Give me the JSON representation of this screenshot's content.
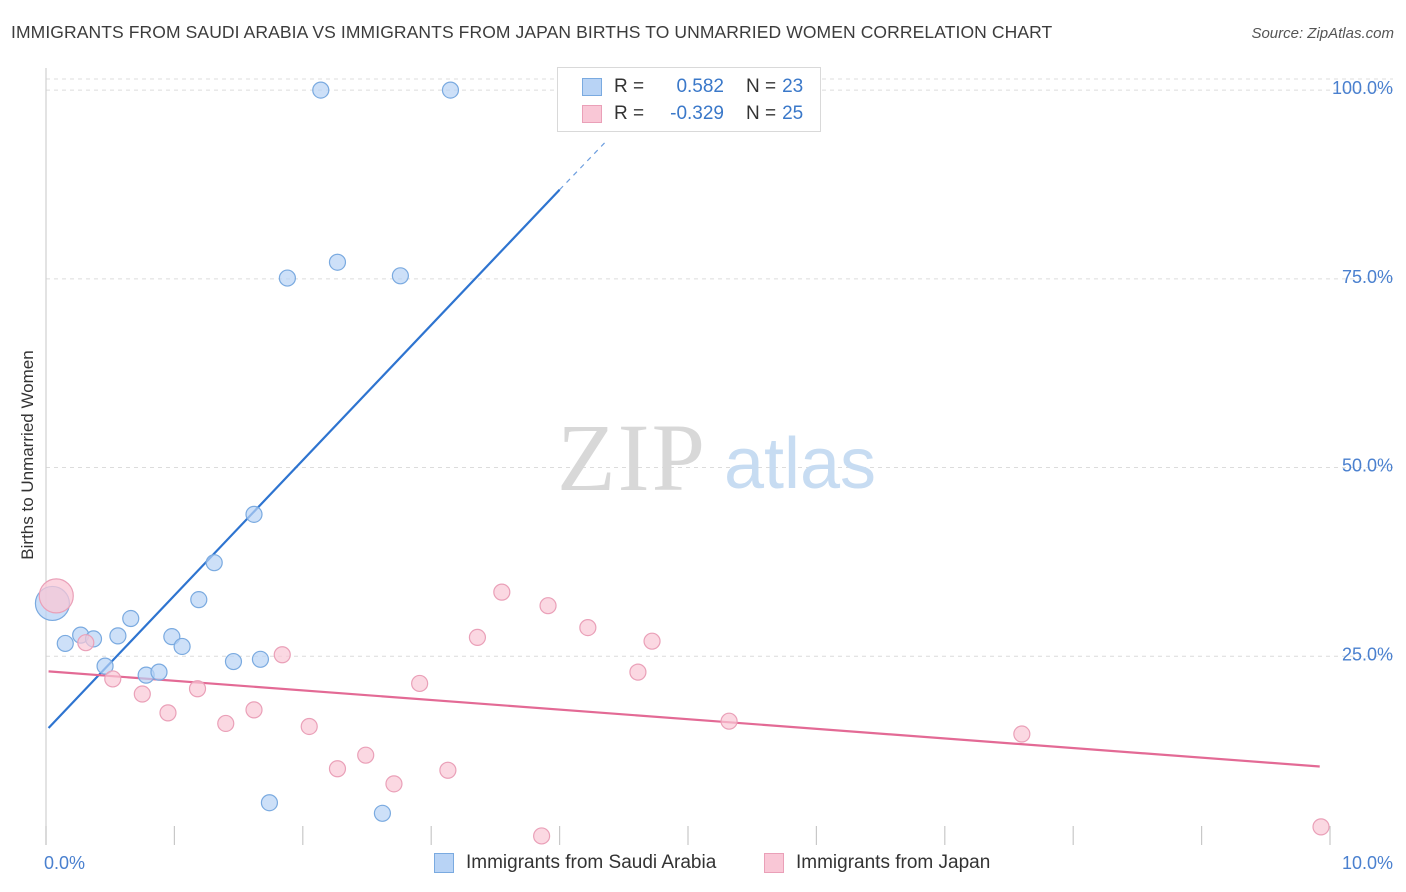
{
  "title": "IMMIGRANTS FROM SAUDI ARABIA VS IMMIGRANTS FROM JAPAN BIRTHS TO UNMARRIED WOMEN CORRELATION CHART",
  "source": "Source: ZipAtlas.com",
  "watermark": {
    "zip": "ZIP",
    "atlas": "atlas"
  },
  "colors": {
    "blue_fill": "#b8d3f5",
    "blue_stroke": "#7aaae0",
    "blue_line": "#2e74d0",
    "pink_fill": "#f9c7d6",
    "pink_stroke": "#eaa0b8",
    "pink_line": "#e36a95",
    "tick_label": "#4a80cf",
    "grid": "#dcdcdc"
  },
  "legend": {
    "rows": [
      {
        "r_label": "R =",
        "r_value": "0.582",
        "n_label": "N =",
        "n_value": "23"
      },
      {
        "r_label": "R =",
        "r_value": "-0.329",
        "n_label": "N =",
        "n_value": "25"
      }
    ]
  },
  "bottom_legend": {
    "items": [
      {
        "label": "Immigrants from Saudi Arabia"
      },
      {
        "label": "Immigrants from Japan"
      }
    ]
  },
  "chart_data": {
    "type": "scatter",
    "title": "IMMIGRANTS FROM SAUDI ARABIA VS IMMIGRANTS FROM JAPAN BIRTHS TO UNMARRIED WOMEN CORRELATION CHART",
    "xlabel": "",
    "ylabel": "Births to Unmarried Women",
    "xlim": [
      0,
      10
    ],
    "ylim": [
      0,
      102
    ],
    "x_tick_labels": [
      "0.0%",
      "10.0%"
    ],
    "y_ticks": [
      25,
      50,
      75,
      100
    ],
    "y_tick_labels": [
      "25.0%",
      "50.0%",
      "75.0%",
      "100.0%"
    ],
    "grid": true,
    "legend_position": "top-center",
    "series": [
      {
        "name": "Immigrants from Saudi Arabia",
        "color": "#b8d3f5",
        "r": 0.582,
        "n": 23,
        "trend": {
          "x": [
            0.02,
            4.0
          ],
          "y": [
            15.5,
            86.8
          ],
          "dashed_to": [
            4.35,
            93.0
          ]
        },
        "points": [
          {
            "x": 0.05,
            "y": 32.0,
            "big": true
          },
          {
            "x": 0.15,
            "y": 26.7
          },
          {
            "x": 0.27,
            "y": 27.8
          },
          {
            "x": 0.37,
            "y": 27.3
          },
          {
            "x": 0.46,
            "y": 23.7
          },
          {
            "x": 0.56,
            "y": 27.7
          },
          {
            "x": 0.66,
            "y": 30.0
          },
          {
            "x": 0.78,
            "y": 22.5
          },
          {
            "x": 0.88,
            "y": 22.9
          },
          {
            "x": 0.98,
            "y": 27.6
          },
          {
            "x": 1.06,
            "y": 26.3
          },
          {
            "x": 1.19,
            "y": 32.5
          },
          {
            "x": 1.31,
            "y": 37.4
          },
          {
            "x": 1.46,
            "y": 24.3
          },
          {
            "x": 1.62,
            "y": 43.8
          },
          {
            "x": 1.67,
            "y": 24.6
          },
          {
            "x": 1.74,
            "y": 5.6
          },
          {
            "x": 1.88,
            "y": 75.1
          },
          {
            "x": 2.14,
            "y": 100.0
          },
          {
            "x": 2.27,
            "y": 77.2
          },
          {
            "x": 2.62,
            "y": 4.2
          },
          {
            "x": 2.76,
            "y": 75.4
          },
          {
            "x": 3.15,
            "y": 100.0
          }
        ]
      },
      {
        "name": "Immigrants from Japan",
        "color": "#f9c7d6",
        "r": -0.329,
        "n": 25,
        "trend": {
          "x": [
            0.02,
            9.92
          ],
          "y": [
            23.0,
            10.4
          ]
        },
        "points": [
          {
            "x": 0.08,
            "y": 33.0,
            "big": true
          },
          {
            "x": 0.31,
            "y": 26.8
          },
          {
            "x": 0.52,
            "y": 22.0
          },
          {
            "x": 0.75,
            "y": 20.0
          },
          {
            "x": 0.95,
            "y": 17.5
          },
          {
            "x": 1.18,
            "y": 20.7
          },
          {
            "x": 1.4,
            "y": 16.1
          },
          {
            "x": 1.62,
            "y": 17.9
          },
          {
            "x": 1.84,
            "y": 25.2
          },
          {
            "x": 2.05,
            "y": 15.7
          },
          {
            "x": 2.27,
            "y": 10.1
          },
          {
            "x": 2.49,
            "y": 11.9
          },
          {
            "x": 2.71,
            "y": 8.1
          },
          {
            "x": 2.91,
            "y": 21.4
          },
          {
            "x": 3.13,
            "y": 9.9
          },
          {
            "x": 3.36,
            "y": 27.5
          },
          {
            "x": 3.55,
            "y": 33.5
          },
          {
            "x": 3.86,
            "y": 1.2
          },
          {
            "x": 3.91,
            "y": 31.7
          },
          {
            "x": 4.22,
            "y": 28.8
          },
          {
            "x": 4.61,
            "y": 22.9
          },
          {
            "x": 4.72,
            "y": 27.0
          },
          {
            "x": 5.32,
            "y": 16.4
          },
          {
            "x": 7.6,
            "y": 14.7
          },
          {
            "x": 9.93,
            "y": 2.4
          }
        ]
      }
    ]
  }
}
